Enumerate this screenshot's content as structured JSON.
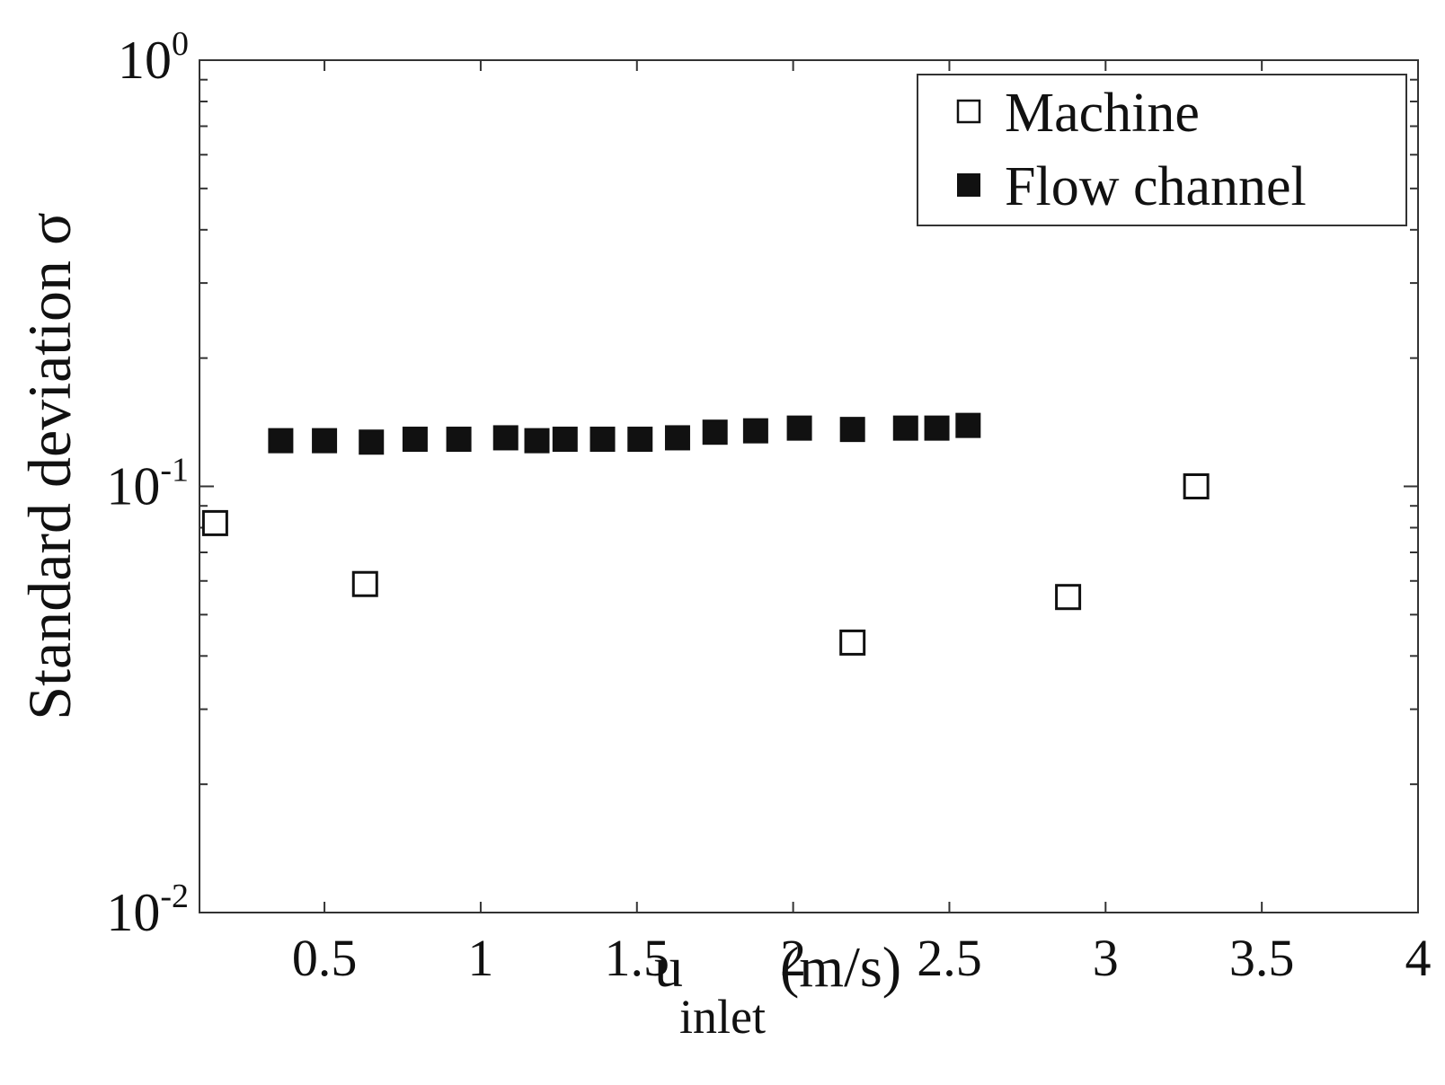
{
  "chart_data": {
    "type": "scatter",
    "x_axis": {
      "label_main": "u",
      "label_sub": "inlet",
      "label_unit": "(m/s)",
      "range": [
        0.1,
        4
      ],
      "ticks": [
        0.5,
        1,
        1.5,
        2,
        2.5,
        3,
        3.5,
        4
      ],
      "tick_labels": [
        "0.5",
        "1",
        "1.5",
        "2",
        "2.5",
        "3",
        "3.5",
        "4"
      ]
    },
    "y_axis": {
      "label": "Standard deviation σ",
      "scale": "log",
      "range": [
        0.01,
        1
      ],
      "ticks": [
        {
          "base": "10",
          "exp": "0",
          "value": 1
        },
        {
          "base": "10",
          "exp": "-1",
          "value": 0.1
        },
        {
          "base": "10",
          "exp": "-2",
          "value": 0.01
        }
      ]
    },
    "grid": false,
    "legend_position": "top-right",
    "series": [
      {
        "name": "Machine",
        "marker": "open-square",
        "color": "#111111",
        "points": [
          {
            "x": 0.15,
            "y": 0.082
          },
          {
            "x": 0.63,
            "y": 0.059
          },
          {
            "x": 2.19,
            "y": 0.043
          },
          {
            "x": 2.88,
            "y": 0.055
          },
          {
            "x": 3.29,
            "y": 0.1
          }
        ]
      },
      {
        "name": "Flow channel",
        "marker": "filled-square",
        "color": "#111111",
        "points": [
          {
            "x": 0.36,
            "y": 0.128
          },
          {
            "x": 0.5,
            "y": 0.128
          },
          {
            "x": 0.65,
            "y": 0.127
          },
          {
            "x": 0.79,
            "y": 0.129
          },
          {
            "x": 0.93,
            "y": 0.129
          },
          {
            "x": 1.08,
            "y": 0.13
          },
          {
            "x": 1.18,
            "y": 0.128
          },
          {
            "x": 1.27,
            "y": 0.129
          },
          {
            "x": 1.39,
            "y": 0.129
          },
          {
            "x": 1.51,
            "y": 0.129
          },
          {
            "x": 1.63,
            "y": 0.13
          },
          {
            "x": 1.75,
            "y": 0.134
          },
          {
            "x": 1.88,
            "y": 0.135
          },
          {
            "x": 2.02,
            "y": 0.137
          },
          {
            "x": 2.19,
            "y": 0.136
          },
          {
            "x": 2.36,
            "y": 0.137
          },
          {
            "x": 2.46,
            "y": 0.137
          },
          {
            "x": 2.56,
            "y": 0.139
          }
        ]
      }
    ]
  }
}
